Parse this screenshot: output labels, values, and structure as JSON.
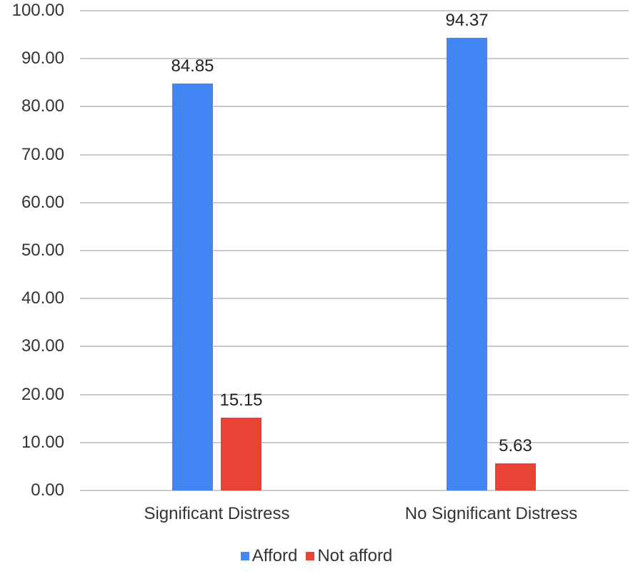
{
  "chart_data": {
    "type": "bar",
    "title": "",
    "xlabel": "",
    "ylabel": "",
    "ylim": [
      0,
      100
    ],
    "yticks": [
      "0.00",
      "10.00",
      "20.00",
      "30.00",
      "40.00",
      "50.00",
      "60.00",
      "70.00",
      "80.00",
      "90.00",
      "100.00"
    ],
    "categories": [
      "Significant Distress",
      "No Significant Distress"
    ],
    "series": [
      {
        "name": "Afford",
        "color": "#4285f4",
        "values": [
          84.85,
          94.37
        ],
        "labels": [
          "84.85",
          "94.37"
        ]
      },
      {
        "name": "Not afford",
        "color": "#ea4335",
        "values": [
          15.15,
          5.63
        ],
        "labels": [
          "15.15",
          "5.63"
        ]
      }
    ],
    "grid": true,
    "legend_position": "bottom"
  }
}
